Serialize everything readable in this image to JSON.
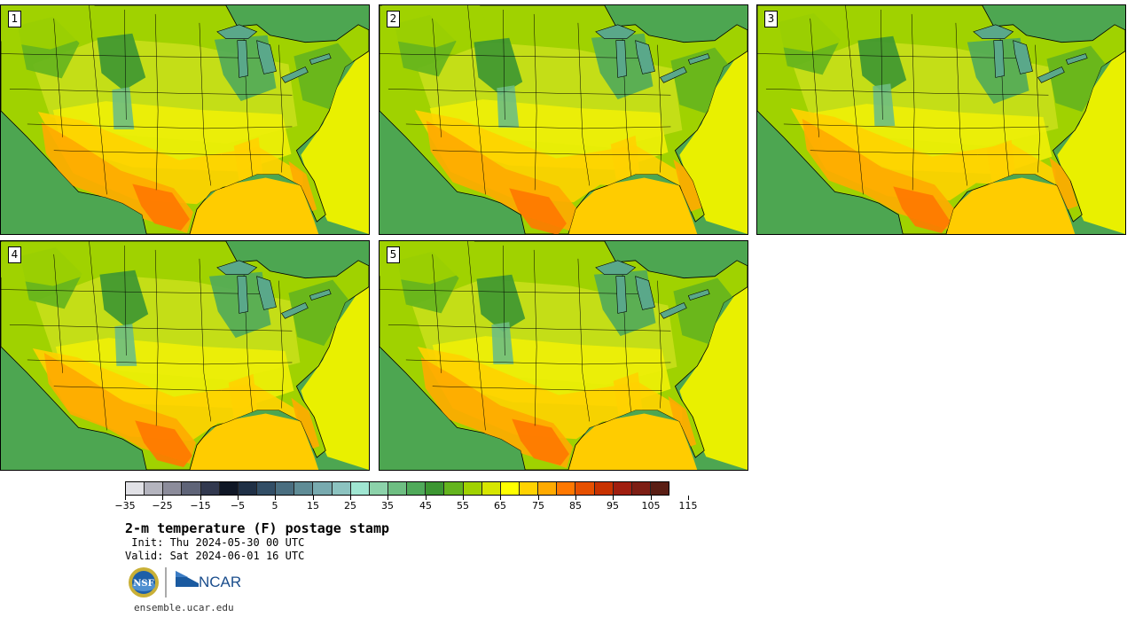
{
  "panels": [
    {
      "label": "1"
    },
    {
      "label": "2"
    },
    {
      "label": "3"
    },
    {
      "label": "4"
    },
    {
      "label": "5"
    }
  ],
  "colorbar": {
    "colors": [
      "#e1e1e6",
      "#b4b4be",
      "#8c8c9b",
      "#5f6478",
      "#32394f",
      "#0f1726",
      "#1f3046",
      "#324e66",
      "#4a6e80",
      "#5f8c96",
      "#78aaaf",
      "#8cc3c0",
      "#a0e6d2",
      "#8cd2aa",
      "#6ebe82",
      "#50aa5a",
      "#3c9632",
      "#64b41e",
      "#a0d200",
      "#d7e600",
      "#ffff00",
      "#ffd200",
      "#ffaa00",
      "#ff7800",
      "#e65000",
      "#c83200",
      "#a01e0f",
      "#7d1e14",
      "#5a1e14"
    ],
    "tick_labels": [
      "−35",
      "−25",
      "−15",
      "−5",
      "5",
      "15",
      "25",
      "35",
      "45",
      "55",
      "65",
      "75",
      "85",
      "95",
      "105",
      "115"
    ]
  },
  "text": {
    "title": "2-m temperature (F) postage stamp",
    "init": " Init: Thu 2024-05-30 00 UTC",
    "valid": "Valid: Sat 2024-06-01 16 UTC",
    "site": "ensemble.ucar.edu",
    "nsf_logo": "NSF",
    "ncar_logo": "NCAR"
  }
}
